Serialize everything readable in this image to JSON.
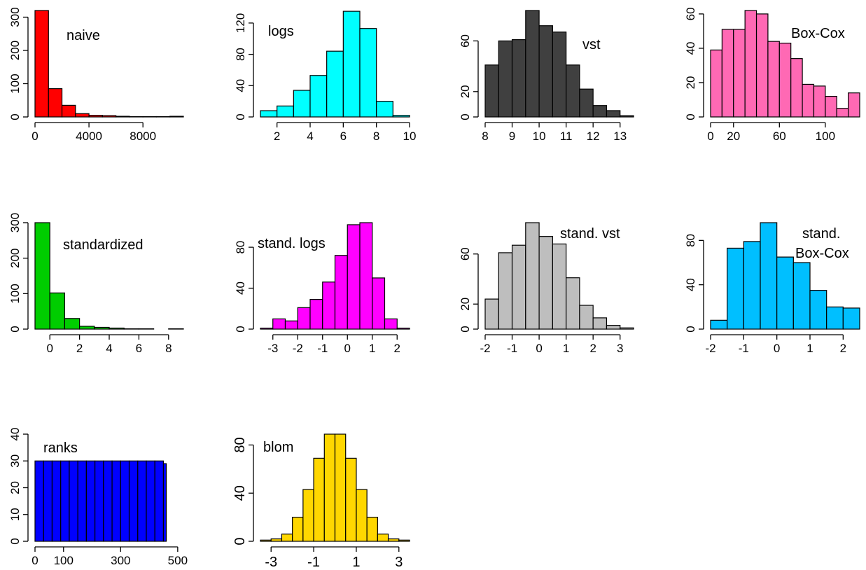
{
  "chart_data": [
    {
      "type": "bar",
      "title": "naive",
      "color": "#FF0000",
      "breaks": [
        0,
        1000,
        2000,
        3000,
        4000,
        5000,
        6000,
        7000,
        8000,
        9000,
        10000,
        11000
      ],
      "values": [
        320,
        85,
        35,
        10,
        5,
        4,
        2,
        1,
        1,
        1,
        2
      ],
      "xticks": [
        0,
        4000,
        8000
      ],
      "yticks": [
        0,
        100,
        200,
        300
      ],
      "xlim": [
        0,
        11000
      ],
      "ylim": [
        0,
        320
      ]
    },
    {
      "type": "bar",
      "title": "logs",
      "color": "#00FFFF",
      "breaks": [
        1,
        2,
        3,
        4,
        5,
        6,
        7,
        8,
        9,
        10
      ],
      "values": [
        8,
        14,
        34,
        53,
        84,
        135,
        113,
        20,
        2
      ],
      "xticks": [
        2,
        4,
        6,
        8,
        10
      ],
      "yticks": [
        0,
        40,
        80,
        120
      ],
      "xlim": [
        1,
        10
      ],
      "ylim": [
        0,
        136
      ]
    },
    {
      "type": "bar",
      "title": "vst",
      "color": "#404040",
      "breaks": [
        8,
        8.5,
        9,
        9.5,
        10,
        10.5,
        11,
        11.5,
        12,
        12.5,
        13,
        13.5
      ],
      "values": [
        41,
        60,
        61,
        84,
        72,
        67,
        41,
        22,
        9,
        5,
        1
      ],
      "xticks": [
        8,
        9,
        10,
        11,
        12,
        13
      ],
      "yticks": [
        0,
        20,
        60
      ],
      "xlim": [
        8,
        13.5
      ],
      "ylim": [
        0,
        84
      ]
    },
    {
      "type": "bar",
      "title": "Box-Cox",
      "color": "#FF69B4",
      "breaks": [
        0,
        10,
        20,
        30,
        40,
        50,
        60,
        70,
        80,
        90,
        100,
        110,
        120,
        130
      ],
      "values": [
        39,
        51,
        51,
        62,
        60,
        44,
        43,
        34,
        19,
        18,
        12,
        5,
        14
      ],
      "xticks": [
        0,
        20,
        60,
        100
      ],
      "yticks": [
        0,
        20,
        40,
        60
      ],
      "xlim": [
        0,
        130
      ],
      "ylim": [
        0,
        62
      ]
    },
    {
      "type": "bar",
      "title": "standardized",
      "color": "#00CD00",
      "breaks": [
        -1,
        0,
        1,
        2,
        3,
        4,
        5,
        6,
        7,
        8,
        9
      ],
      "values": [
        300,
        102,
        30,
        8,
        5,
        3,
        1,
        1,
        0,
        1
      ],
      "xticks": [
        0,
        2,
        4,
        6,
        8
      ],
      "yticks": [
        0,
        100,
        200,
        300
      ],
      "xlim": [
        -1,
        9
      ],
      "ylim": [
        0,
        300
      ]
    },
    {
      "type": "bar",
      "title": "stand. logs",
      "color": "#FF00FF",
      "breaks": [
        -3.5,
        -3,
        -2.5,
        -2,
        -1.5,
        -1,
        -0.5,
        0,
        0.5,
        1,
        1.5,
        2,
        2.5
      ],
      "values": [
        1,
        10,
        8,
        21,
        29,
        46,
        72,
        102,
        104,
        50,
        10,
        1
      ],
      "xticks": [
        -3,
        -2,
        -1,
        0,
        1,
        2
      ],
      "yticks": [
        0,
        40,
        80
      ],
      "xlim": [
        -3.5,
        2.5
      ],
      "ylim": [
        0,
        104
      ]
    },
    {
      "type": "bar",
      "title": "stand. vst",
      "color": "#BEBEBE",
      "breaks": [
        -2,
        -1.5,
        -1,
        -0.5,
        0,
        0.5,
        1,
        1.5,
        2,
        2.5,
        3,
        3.5
      ],
      "values": [
        24,
        61,
        67,
        85,
        74,
        68,
        41,
        19,
        9,
        3,
        1
      ],
      "xticks": [
        -2,
        -1,
        0,
        1,
        2,
        3
      ],
      "yticks": [
        0,
        20,
        60
      ],
      "xlim": [
        -2,
        3.5
      ],
      "ylim": [
        0,
        85
      ]
    },
    {
      "type": "bar",
      "title": "stand.\nBox-Cox",
      "color": "#00BFFF",
      "breaks": [
        -2,
        -1.5,
        -1,
        -0.5,
        0,
        0.5,
        1,
        1.5,
        2,
        2.5
      ],
      "values": [
        8,
        73,
        79,
        96,
        65,
        60,
        35,
        20,
        19
      ],
      "xticks": [
        -2,
        -1,
        0,
        1,
        2
      ],
      "yticks": [
        0,
        40,
        80
      ],
      "xlim": [
        -2,
        2.5
      ],
      "ylim": [
        0,
        96
      ]
    },
    {
      "type": "bar",
      "title": "ranks",
      "color": "#0000FF",
      "breaks": [
        0,
        30,
        60,
        90,
        120,
        150,
        180,
        210,
        240,
        270,
        300,
        330,
        360,
        390,
        420,
        450,
        460
      ],
      "values": [
        30,
        30,
        30,
        30,
        30,
        30,
        30,
        30,
        30,
        30,
        30,
        30,
        30,
        30,
        30,
        29
      ],
      "xticks": [
        0,
        100,
        300,
        500
      ],
      "yticks": [
        0,
        10,
        20,
        30,
        40
      ],
      "xlim": [
        0,
        520
      ],
      "ylim": [
        0,
        40
      ]
    },
    {
      "type": "bar",
      "title": "blom",
      "color": "#FFD700",
      "breaks": [
        -3.5,
        -3,
        -2.5,
        -2,
        -1.5,
        -1,
        -0.5,
        0,
        0.5,
        1,
        1.5,
        2,
        2.5,
        3,
        3.5
      ],
      "values": [
        1,
        2,
        6,
        20,
        43,
        69,
        89,
        89,
        69,
        43,
        20,
        6,
        2,
        1
      ],
      "xticks": [
        -3,
        -1,
        1,
        3
      ],
      "yticks": [
        0,
        40,
        80
      ],
      "xlim": [
        -3.5,
        3.5
      ],
      "ylim": [
        0,
        89
      ]
    }
  ]
}
